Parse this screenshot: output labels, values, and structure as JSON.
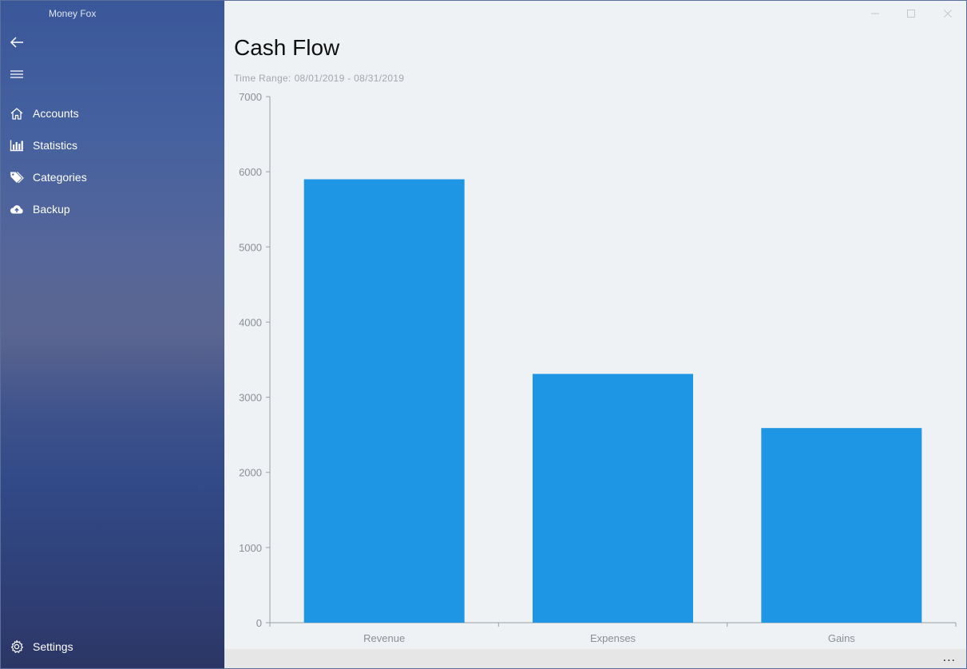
{
  "window": {
    "app_title": "Money Fox",
    "controls": {
      "minimize_icon": "minimize-icon",
      "maximize_icon": "maximize-icon",
      "close_icon": "close-icon"
    }
  },
  "sidebar": {
    "back_icon": "back-arrow-icon",
    "menu_icon": "hamburger-menu-icon",
    "items": [
      {
        "label": "Accounts",
        "icon": "home-icon"
      },
      {
        "label": "Statistics",
        "icon": "bar-chart-icon"
      },
      {
        "label": "Categories",
        "icon": "tags-icon"
      },
      {
        "label": "Backup",
        "icon": "cloud-upload-icon"
      }
    ],
    "settings": {
      "label": "Settings",
      "icon": "gear-icon"
    }
  },
  "main": {
    "title": "Cash Flow",
    "time_range_label": "Time Range:",
    "time_range_value": "08/01/2019 - 08/31/2019"
  },
  "bottom_bar": {
    "more_label": "..."
  },
  "colors": {
    "bar": "#1e96e4",
    "axis": "#9aa0a8",
    "tick_text": "#8a8f96"
  },
  "chart_data": {
    "type": "bar",
    "categories": [
      "Revenue",
      "Expenses",
      "Gains"
    ],
    "values": [
      5900,
      3310,
      2590
    ],
    "ylim": [
      0,
      7000
    ],
    "yticks": [
      0,
      1000,
      2000,
      3000,
      4000,
      5000,
      6000,
      7000
    ],
    "grid": false
  }
}
